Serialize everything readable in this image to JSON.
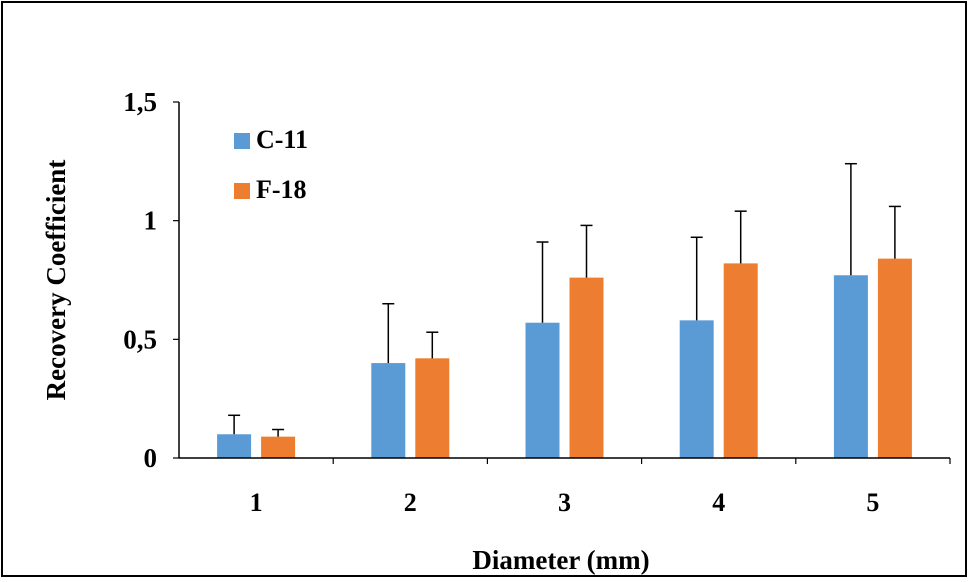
{
  "chart_data": {
    "type": "bar",
    "xlabel": "Diameter (mm)",
    "ylabel": "Recovery Coefficient",
    "categories": [
      "1",
      "2",
      "3",
      "4",
      "5"
    ],
    "ylim": [
      0,
      1.5
    ],
    "yticks": [
      {
        "value": 0,
        "label": "0"
      },
      {
        "value": 0.5,
        "label": "0,5"
      },
      {
        "value": 1,
        "label": "1"
      },
      {
        "value": 1.5,
        "label": "1,5"
      }
    ],
    "grid": false,
    "legend": "top-left",
    "series": [
      {
        "name": "C-11",
        "color": "#5B9BD5",
        "values": [
          0.1,
          0.4,
          0.57,
          0.58,
          0.77
        ],
        "error": [
          0.08,
          0.25,
          0.34,
          0.35,
          0.47
        ]
      },
      {
        "name": "F-18",
        "color": "#ED7D31",
        "values": [
          0.09,
          0.42,
          0.76,
          0.82,
          0.84
        ],
        "error": [
          0.03,
          0.11,
          0.22,
          0.22,
          0.22
        ]
      }
    ]
  }
}
